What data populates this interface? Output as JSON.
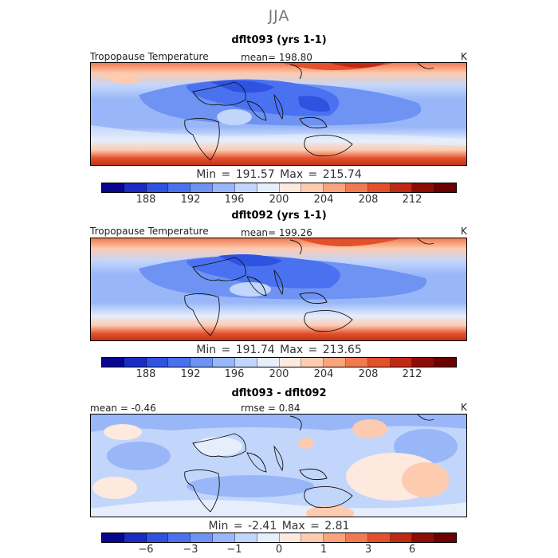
{
  "season": "JJA",
  "colors": [
    "#08068f",
    "#1a2cc4",
    "#2f52e0",
    "#4a72f0",
    "#6e93f3",
    "#99b7f8",
    "#c2d6fb",
    "#e6eefc",
    "#fde9dd",
    "#fccbb0",
    "#f8a47d",
    "#f17a50",
    "#e2502c",
    "#c02a14",
    "#8e0c06",
    "#6a0000"
  ],
  "panels": [
    {
      "title": "dflt093 (yrs 1-1)",
      "variable": "Tropopause Temperature",
      "mean_text": "mean= 198.80",
      "units": "K",
      "minmax_text": "Min = 191.57 Max = 215.74",
      "ticks": [
        "188",
        "192",
        "196",
        "200",
        "204",
        "208",
        "212"
      ],
      "map_data": {
        "min": 191.57,
        "max": 215.74,
        "mean": 198.8,
        "scale": "absolute"
      }
    },
    {
      "title": "dflt092 (yrs 1-1)",
      "variable": "Tropopause Temperature",
      "mean_text": "mean= 199.26",
      "units": "K",
      "minmax_text": "Min = 191.74 Max = 213.65",
      "ticks": [
        "188",
        "192",
        "196",
        "200",
        "204",
        "208",
        "212"
      ],
      "map_data": {
        "min": 191.74,
        "max": 213.65,
        "mean": 199.26,
        "scale": "absolute"
      }
    },
    {
      "title": "dflt093 - dflt092",
      "mean_text": "mean = -0.46",
      "rmse_text": "rmse = 0.84",
      "units": "K",
      "minmax_text": "Min = -2.41 Max = 2.81",
      "ticks": [
        "−6",
        "−3",
        "−1",
        "0",
        "1",
        "3",
        "6"
      ],
      "map_data": {
        "min": -2.41,
        "max": 2.81,
        "mean": -0.46,
        "rmse": 0.84,
        "scale": "difference"
      }
    }
  ]
}
